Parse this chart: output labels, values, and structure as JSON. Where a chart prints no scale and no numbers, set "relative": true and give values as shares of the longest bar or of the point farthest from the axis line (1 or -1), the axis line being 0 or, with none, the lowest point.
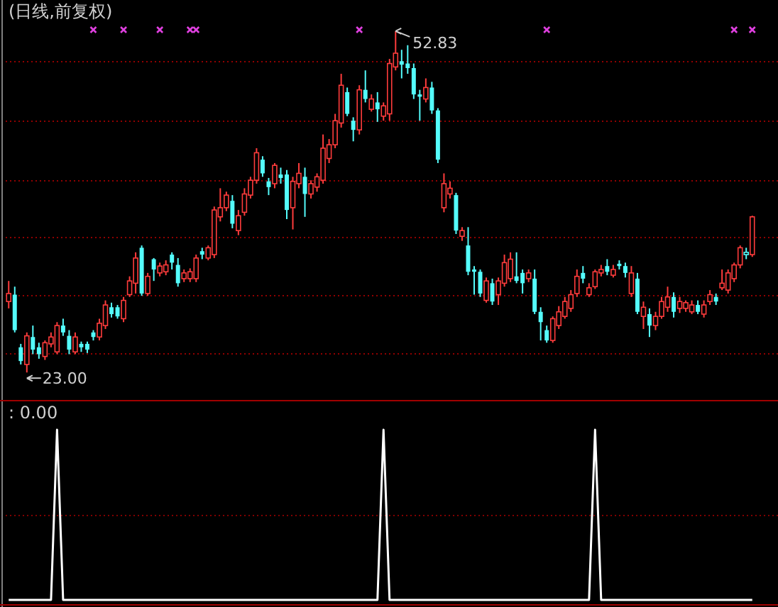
{
  "chart_data": [
    {
      "type": "candlestick",
      "title": "(日线,前复权)",
      "categories": [
        null,
        null,
        null,
        null,
        null,
        null,
        null,
        null,
        null,
        null,
        null,
        null,
        null,
        null,
        null,
        null,
        null,
        null,
        null,
        null,
        null,
        null,
        null,
        null,
        null,
        null,
        null,
        null,
        null,
        null,
        null,
        null,
        null,
        null,
        null,
        null,
        null,
        null,
        null,
        null,
        null,
        null,
        null,
        null,
        null,
        null,
        null,
        null,
        null,
        null,
        null,
        null,
        null,
        null,
        null,
        null,
        null,
        null,
        null,
        null,
        null,
        null,
        null,
        null,
        null,
        null,
        null,
        null,
        null,
        null,
        null,
        null,
        null,
        null,
        null,
        null,
        null,
        null,
        null,
        null,
        null,
        null,
        null,
        null,
        null,
        null,
        null,
        null,
        null,
        null,
        null,
        null,
        null,
        null,
        null,
        null,
        null,
        null,
        null,
        null,
        null,
        null,
        null,
        null,
        null,
        null,
        null,
        null,
        null,
        null,
        null,
        null,
        null,
        null,
        null,
        null,
        null,
        null,
        null,
        null,
        null,
        null,
        null,
        null
      ],
      "ohlc": [
        [
          29.2,
          31.0,
          28.6,
          29.9
        ],
        [
          29.8,
          30.5,
          26.5,
          26.7
        ],
        [
          25.2,
          25.5,
          23.7,
          24.0
        ],
        [
          23.7,
          26.5,
          23.0,
          26.2
        ],
        [
          26.1,
          27.1,
          24.6,
          25.0
        ],
        [
          25.2,
          25.6,
          24.2,
          24.6
        ],
        [
          24.4,
          25.8,
          24.1,
          25.6
        ],
        [
          25.5,
          26.5,
          25.2,
          26.1
        ],
        [
          24.8,
          27.4,
          24.6,
          27.1
        ],
        [
          27.1,
          27.7,
          26.2,
          26.5
        ],
        [
          26.2,
          26.7,
          24.6,
          25.0
        ],
        [
          24.8,
          26.5,
          24.6,
          26.1
        ],
        [
          25.5,
          25.7,
          24.8,
          25.2
        ],
        [
          25.5,
          25.7,
          24.7,
          25.0
        ],
        [
          26.5,
          26.7,
          25.8,
          26.1
        ],
        [
          26.1,
          27.7,
          25.8,
          27.3
        ],
        [
          27.1,
          29.3,
          26.8,
          28.9
        ],
        [
          28.7,
          29.1,
          27.8,
          28.1
        ],
        [
          28.7,
          28.9,
          27.7,
          27.9
        ],
        [
          27.7,
          29.6,
          27.4,
          29.3
        ],
        [
          29.8,
          31.4,
          29.6,
          31.0
        ],
        [
          30.8,
          33.5,
          29.9,
          33.0
        ],
        [
          33.9,
          34.1,
          29.7,
          29.9
        ],
        [
          29.9,
          31.7,
          29.7,
          31.4
        ],
        [
          32.9,
          33.0,
          31.0,
          32.0
        ],
        [
          31.7,
          32.6,
          31.4,
          32.3
        ],
        [
          31.8,
          32.8,
          31.5,
          32.4
        ],
        [
          33.3,
          33.5,
          32.0,
          32.6
        ],
        [
          32.4,
          33.0,
          30.5,
          30.8
        ],
        [
          31.2,
          32.0,
          30.9,
          31.7
        ],
        [
          31.2,
          32.1,
          30.9,
          31.8
        ],
        [
          31.2,
          33.3,
          30.9,
          33.0
        ],
        [
          33.6,
          33.9,
          32.9,
          33.3
        ],
        [
          33.0,
          34.1,
          32.8,
          33.9
        ],
        [
          33.3,
          37.5,
          33.0,
          37.2
        ],
        [
          36.6,
          39.1,
          36.2,
          37.4
        ],
        [
          37.4,
          38.8,
          37.1,
          38.5
        ],
        [
          38.0,
          38.5,
          35.6,
          36.0
        ],
        [
          35.4,
          37.2,
          35.0,
          36.7
        ],
        [
          37.0,
          39.1,
          36.7,
          38.6
        ],
        [
          38.5,
          40.1,
          38.2,
          39.8
        ],
        [
          39.8,
          42.6,
          39.5,
          42.2
        ],
        [
          41.6,
          41.9,
          40.1,
          40.4
        ],
        [
          39.7,
          40.0,
          38.5,
          39.2
        ],
        [
          39.5,
          41.3,
          39.1,
          41.1
        ],
        [
          40.3,
          40.9,
          39.5,
          40.0
        ],
        [
          40.3,
          40.7,
          36.4,
          37.2
        ],
        [
          37.4,
          40.1,
          35.5,
          39.7
        ],
        [
          39.5,
          41.3,
          39.1,
          40.4
        ],
        [
          40.1,
          40.9,
          36.6,
          38.6
        ],
        [
          38.6,
          39.8,
          38.2,
          39.5
        ],
        [
          39.2,
          40.4,
          38.8,
          40.1
        ],
        [
          39.8,
          43.8,
          39.5,
          42.6
        ],
        [
          41.7,
          43.4,
          41.3,
          42.9
        ],
        [
          42.9,
          45.6,
          42.6,
          45.0
        ],
        [
          44.8,
          49.1,
          44.4,
          48.1
        ],
        [
          47.5,
          47.9,
          45.4,
          45.6
        ],
        [
          45.0,
          45.3,
          43.2,
          44.2
        ],
        [
          44.2,
          48.1,
          43.8,
          47.7
        ],
        [
          47.7,
          49.4,
          46.6,
          46.9
        ],
        [
          46.0,
          47.3,
          45.8,
          46.9
        ],
        [
          46.6,
          47.5,
          44.9,
          46.0
        ],
        [
          45.4,
          46.6,
          45.0,
          46.3
        ],
        [
          45.6,
          50.4,
          45.0,
          50.0
        ],
        [
          49.7,
          52.83,
          49.4,
          50.9
        ],
        [
          50.2,
          51.2,
          48.7,
          49.9
        ],
        [
          50.0,
          51.6,
          49.1,
          49.6
        ],
        [
          49.6,
          50.0,
          46.9,
          47.3
        ],
        [
          47.3,
          47.7,
          45.0,
          47.1
        ],
        [
          46.9,
          48.7,
          46.6,
          47.9
        ],
        [
          47.9,
          48.4,
          45.6,
          45.9
        ],
        [
          45.9,
          46.1,
          41.3,
          41.6
        ],
        [
          37.4,
          40.4,
          37.0,
          39.5
        ],
        [
          38.6,
          39.7,
          38.2,
          39.1
        ],
        [
          38.5,
          38.7,
          35.1,
          35.4
        ],
        [
          34.9,
          35.7,
          34.5,
          35.4
        ],
        [
          34.1,
          35.7,
          31.5,
          31.8
        ],
        [
          32.0,
          32.3,
          29.8,
          31.8
        ],
        [
          31.8,
          32.0,
          29.6,
          29.9
        ],
        [
          29.3,
          31.3,
          29.1,
          31.0
        ],
        [
          30.8,
          31.2,
          28.9,
          29.2
        ],
        [
          29.8,
          31.3,
          28.9,
          31.0
        ],
        [
          30.8,
          33.3,
          30.5,
          32.6
        ],
        [
          31.2,
          33.5,
          30.9,
          32.9
        ],
        [
          31.4,
          33.5,
          30.8,
          31.0
        ],
        [
          31.7,
          32.0,
          29.9,
          30.8
        ],
        [
          31.2,
          32.0,
          30.9,
          31.7
        ],
        [
          31.2,
          32.0,
          28.1,
          28.3
        ],
        [
          28.3,
          28.7,
          25.8,
          27.4
        ],
        [
          26.7,
          27.1,
          25.6,
          25.8
        ],
        [
          25.8,
          27.9,
          25.6,
          27.7
        ],
        [
          27.1,
          28.8,
          26.8,
          28.3
        ],
        [
          27.9,
          29.6,
          27.7,
          29.2
        ],
        [
          28.6,
          30.2,
          28.3,
          29.8
        ],
        [
          29.9,
          32.0,
          29.6,
          31.4
        ],
        [
          31.7,
          32.3,
          30.8,
          31.2
        ],
        [
          29.8,
          30.8,
          29.6,
          30.4
        ],
        [
          30.5,
          32.0,
          30.3,
          31.8
        ],
        [
          31.7,
          32.4,
          31.4,
          32.0
        ],
        [
          32.3,
          32.9,
          31.5,
          31.8
        ],
        [
          31.5,
          32.4,
          31.3,
          32.0
        ],
        [
          32.5,
          32.8,
          32.0,
          32.3
        ],
        [
          32.3,
          32.6,
          31.3,
          31.7
        ],
        [
          29.9,
          32.3,
          29.6,
          31.7
        ],
        [
          31.2,
          31.7,
          28.1,
          28.3
        ],
        [
          27.9,
          29.2,
          26.8,
          28.7
        ],
        [
          28.1,
          28.6,
          26.1,
          27.1
        ],
        [
          27.1,
          28.3,
          26.7,
          27.9
        ],
        [
          27.9,
          29.6,
          27.7,
          29.2
        ],
        [
          28.7,
          30.5,
          28.3,
          29.6
        ],
        [
          29.6,
          30.0,
          27.8,
          28.3
        ],
        [
          28.6,
          29.6,
          28.2,
          29.2
        ],
        [
          28.6,
          29.3,
          28.3,
          29.1
        ],
        [
          28.3,
          29.3,
          28.1,
          28.9
        ],
        [
          28.9,
          29.3,
          28.1,
          28.3
        ],
        [
          28.1,
          29.3,
          27.8,
          28.9
        ],
        [
          29.2,
          30.2,
          28.9,
          29.8
        ],
        [
          29.6,
          29.9,
          28.9,
          29.2
        ],
        [
          30.4,
          32.0,
          30.2,
          30.8
        ],
        [
          30.2,
          32.0,
          29.9,
          31.7
        ],
        [
          31.2,
          32.6,
          30.9,
          32.4
        ],
        [
          32.4,
          34.1,
          32.1,
          33.9
        ],
        [
          33.3,
          33.9,
          32.9,
          33.5
        ],
        [
          33.3,
          36.7,
          33.1,
          36.6
        ]
      ],
      "colors": [
        "#ff3c3c",
        "#54fcfc",
        "#54fcfc",
        "#ff3c3c",
        "#54fcfc",
        "#54fcfc",
        "#ff3c3c",
        "#ff3c3c",
        "#ff3c3c",
        "#54fcfc",
        "#54fcfc",
        "#ff3c3c",
        "#54fcfc",
        "#54fcfc",
        "#54fcfc",
        "#ff3c3c",
        "#ff3c3c",
        "#54fcfc",
        "#54fcfc",
        "#ff3c3c",
        "#ff3c3c",
        "#ff3c3c",
        "#54fcfc",
        "#ff3c3c",
        "#54fcfc",
        "#ff3c3c",
        "#ff3c3c",
        "#54fcfc",
        "#54fcfc",
        "#ff3c3c",
        "#ff3c3c",
        "#ff3c3c",
        "#54fcfc",
        "#ff3c3c",
        "#ff3c3c",
        "#ff3c3c",
        "#ff3c3c",
        "#54fcfc",
        "#ff3c3c",
        "#ff3c3c",
        "#ff3c3c",
        "#ff3c3c",
        "#54fcfc",
        "#54fcfc",
        "#ff3c3c",
        "#54fcfc",
        "#54fcfc",
        "#ff3c3c",
        "#ff3c3c",
        "#54fcfc",
        "#ff3c3c",
        "#ff3c3c",
        "#ff3c3c",
        "#ff3c3c",
        "#ff3c3c",
        "#ff3c3c",
        "#54fcfc",
        "#54fcfc",
        "#ff3c3c",
        "#54fcfc",
        "#ff3c3c",
        "#54fcfc",
        "#ff3c3c",
        "#ff3c3c",
        "#ff3c3c",
        "#54fcfc",
        "#54fcfc",
        "#54fcfc",
        "#54fcfc",
        "#ff3c3c",
        "#54fcfc",
        "#54fcfc",
        "#ff3c3c",
        "#ff3c3c",
        "#54fcfc",
        "#ff3c3c",
        "#54fcfc",
        "#54fcfc",
        "#54fcfc",
        "#ff3c3c",
        "#54fcfc",
        "#ff3c3c",
        "#ff3c3c",
        "#ff3c3c",
        "#54fcfc",
        "#54fcfc",
        "#ff3c3c",
        "#54fcfc",
        "#54fcfc",
        "#54fcfc",
        "#ff3c3c",
        "#ff3c3c",
        "#ff3c3c",
        "#ff3c3c",
        "#ff3c3c",
        "#54fcfc",
        "#ff3c3c",
        "#ff3c3c",
        "#ff3c3c",
        "#54fcfc",
        "#ff3c3c",
        "#54fcfc",
        "#54fcfc",
        "#ff3c3c",
        "#54fcfc",
        "#ff3c3c",
        "#54fcfc",
        "#ff3c3c",
        "#ff3c3c",
        "#ff3c3c",
        "#54fcfc",
        "#ff3c3c",
        "#ff3c3c",
        "#ff3c3c",
        "#54fcfc",
        "#ff3c3c",
        "#ff3c3c",
        "#54fcfc",
        "#ff3c3c",
        "#ff3c3c",
        "#ff3c3c",
        "#ff3c3c",
        "#54fcfc",
        "#ff3c3c"
      ],
      "series": [
        {
          "type": "scatter",
          "marker": "cross",
          "color": "#e040e0",
          "values": [
            null,
            null,
            null,
            null,
            null,
            null,
            null,
            null,
            null,
            null,
            null,
            null,
            null,
            null,
            52.95,
            null,
            null,
            null,
            null,
            52.95,
            null,
            null,
            null,
            null,
            null,
            52.95,
            null,
            null,
            null,
            null,
            52.95,
            52.95,
            null,
            null,
            null,
            null,
            null,
            null,
            null,
            null,
            null,
            null,
            null,
            null,
            null,
            null,
            null,
            null,
            null,
            null,
            null,
            null,
            null,
            null,
            null,
            null,
            null,
            null,
            52.95,
            null,
            null,
            null,
            null,
            null,
            null,
            null,
            null,
            null,
            null,
            null,
            null,
            null,
            null,
            null,
            null,
            null,
            null,
            null,
            null,
            null,
            null,
            null,
            null,
            null,
            null,
            null,
            null,
            null,
            null,
            52.95,
            null,
            null,
            null,
            null,
            null,
            null,
            null,
            null,
            null,
            null,
            null,
            null,
            null,
            null,
            null,
            null,
            null,
            null,
            null,
            null,
            null,
            null,
            null,
            null,
            null,
            null,
            null,
            null,
            null,
            null,
            52.95,
            null,
            null,
            52.95
          ]
        }
      ],
      "ylim": [
        20.6,
        55.55
      ],
      "yticks": [
        {
          "value": 50.2,
          "label": null
        },
        {
          "value": 45.0,
          "label": null
        },
        {
          "value": 39.8,
          "label": null
        },
        {
          "value": 34.9,
          "label": null
        },
        {
          "value": 29.8,
          "label": null
        },
        {
          "value": 24.7,
          "label": null
        }
      ],
      "tick_labels": false,
      "grid": "y",
      "annotations": [
        "52.83",
        "23.00"
      ]
    },
    {
      "type": "line",
      "relative": true,
      "tick_labels": false,
      "categories": [
        null,
        null,
        null,
        null,
        null,
        null,
        null,
        null,
        null,
        null,
        null,
        null,
        null,
        null,
        null,
        null,
        null,
        null,
        null,
        null,
        null,
        null,
        null,
        null,
        null,
        null,
        null,
        null,
        null,
        null,
        null,
        null,
        null,
        null,
        null,
        null,
        null,
        null,
        null,
        null,
        null,
        null,
        null,
        null,
        null,
        null,
        null,
        null,
        null,
        null,
        null,
        null,
        null,
        null,
        null,
        null,
        null,
        null,
        null,
        null,
        null,
        null,
        null,
        null,
        null,
        null,
        null,
        null,
        null,
        null,
        null,
        null,
        null,
        null,
        null,
        null,
        null,
        null,
        null,
        null,
        null,
        null,
        null,
        null,
        null,
        null,
        null,
        null,
        null,
        null,
        null,
        null,
        null,
        null,
        null,
        null,
        null,
        null,
        null,
        null,
        null,
        null,
        null,
        null,
        null,
        null,
        null,
        null,
        null,
        null,
        null,
        null,
        null,
        null,
        null,
        null,
        null,
        null,
        null,
        null,
        null,
        null,
        null,
        null
      ],
      "series": [
        {
          "color": "#ffffff",
          "values": [
            0,
            0,
            0,
            0,
            0,
            0,
            0,
            0,
            1,
            0,
            0,
            0,
            0,
            0,
            0,
            0,
            0,
            0,
            0,
            0,
            0,
            0,
            0,
            0,
            0,
            0,
            0,
            0,
            0,
            0,
            0,
            0,
            0,
            0,
            0,
            0,
            0,
            0,
            0,
            0,
            0,
            0,
            0,
            0,
            0,
            0,
            0,
            0,
            0,
            0,
            0,
            0,
            0,
            0,
            0,
            0,
            0,
            0,
            0,
            0,
            0,
            0,
            1,
            0,
            0,
            0,
            0,
            0,
            0,
            0,
            0,
            0,
            0,
            0,
            0,
            0,
            0,
            0,
            0,
            0,
            0,
            0,
            0,
            0,
            0,
            0,
            0,
            0,
            0,
            0,
            0,
            0,
            0,
            0,
            0,
            0,
            0,
            1,
            0,
            0,
            0,
            0,
            0,
            0,
            0,
            0,
            0,
            0,
            0,
            0,
            0,
            0,
            0,
            0,
            0,
            0,
            0,
            0,
            0,
            0,
            0,
            0,
            0,
            0
          ]
        }
      ],
      "ref_lines": [
        {
          "axis": "y",
          "value": 0.5,
          "color": "#800000",
          "line_style": "dotted"
        }
      ],
      "annotations": [
        ": 0.00"
      ]
    }
  ]
}
